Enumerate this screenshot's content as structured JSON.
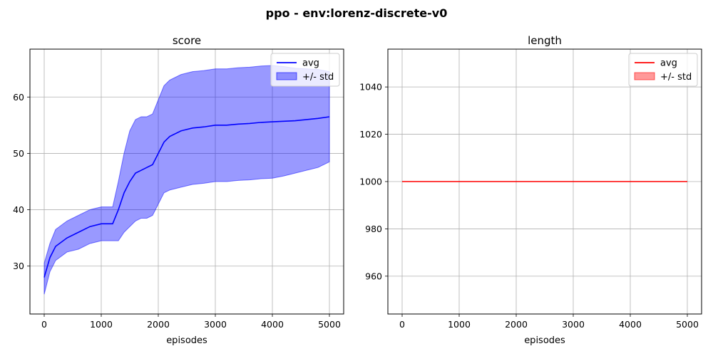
{
  "figure": {
    "suptitle": "ppo - env:lorenz-discrete-v0"
  },
  "chart_data": [
    {
      "type": "line",
      "title": "score",
      "xlabel": "episodes",
      "ylabel": "",
      "xlim": [
        -250,
        5250
      ],
      "ylim": [
        21.5,
        68.5
      ],
      "xticks": [
        0,
        1000,
        2000,
        3000,
        4000,
        5000
      ],
      "yticks": [
        30,
        40,
        50,
        60
      ],
      "grid": true,
      "legend_position": "top-right",
      "series": [
        {
          "name": "avg",
          "kind": "line",
          "color": "#0000ff",
          "x": [
            0,
            100,
            200,
            400,
            600,
            800,
            1000,
            1200,
            1300,
            1400,
            1500,
            1600,
            1700,
            1800,
            1900,
            2000,
            2100,
            2200,
            2400,
            2600,
            2800,
            3000,
            3200,
            3400,
            3600,
            3800,
            4000,
            4200,
            4400,
            4600,
            4800,
            5000
          ],
          "y": [
            28,
            31.5,
            33.5,
            35,
            36,
            37,
            37.5,
            37.5,
            40,
            43,
            45,
            46.5,
            47,
            47.5,
            48,
            50,
            52,
            53,
            54,
            54.5,
            54.7,
            55,
            55,
            55.2,
            55.3,
            55.5,
            55.6,
            55.7,
            55.8,
            56,
            56.2,
            56.5
          ]
        },
        {
          "name": "+/- std",
          "kind": "band",
          "color": "#0000ff",
          "x": [
            0,
            100,
            200,
            400,
            600,
            800,
            1000,
            1200,
            1300,
            1400,
            1500,
            1600,
            1700,
            1800,
            1900,
            2000,
            2100,
            2200,
            2400,
            2600,
            2800,
            3000,
            3200,
            3400,
            3600,
            3800,
            4000,
            4200,
            4400,
            4600,
            4800,
            5000
          ],
          "lower": [
            25,
            29,
            31,
            32.5,
            33,
            34,
            34.5,
            34.5,
            34.5,
            36,
            37,
            38,
            38.5,
            38.5,
            39,
            41,
            43,
            43.5,
            44,
            44.5,
            44.7,
            45,
            45,
            45.2,
            45.3,
            45.5,
            45.6,
            46,
            46.5,
            47,
            47.5,
            48.5
          ],
          "upper": [
            30.5,
            34,
            36.5,
            38,
            39,
            40,
            40.5,
            40.5,
            45,
            50,
            54,
            56,
            56.5,
            56.5,
            57,
            59.5,
            62,
            63,
            64,
            64.5,
            64.7,
            65,
            65,
            65.2,
            65.3,
            65.5,
            65.6,
            65.4,
            65.1,
            65,
            64.9,
            64.5
          ]
        }
      ]
    },
    {
      "type": "line",
      "title": "length",
      "xlabel": "episodes",
      "ylabel": "",
      "xlim": [
        -250,
        5250
      ],
      "ylim": [
        944,
        1056
      ],
      "xticks": [
        0,
        1000,
        2000,
        3000,
        4000,
        5000
      ],
      "yticks": [
        960,
        980,
        1000,
        1020,
        1040
      ],
      "grid": true,
      "legend_position": "top-right",
      "series": [
        {
          "name": "avg",
          "kind": "line",
          "color": "#ff0000",
          "x": [
            0,
            5000
          ],
          "y": [
            1000,
            1000
          ]
        },
        {
          "name": "+/- std",
          "kind": "band",
          "color": "#ff0000",
          "x": [
            0,
            5000
          ],
          "lower": [
            1000,
            1000
          ],
          "upper": [
            1000,
            1000
          ]
        }
      ]
    }
  ]
}
